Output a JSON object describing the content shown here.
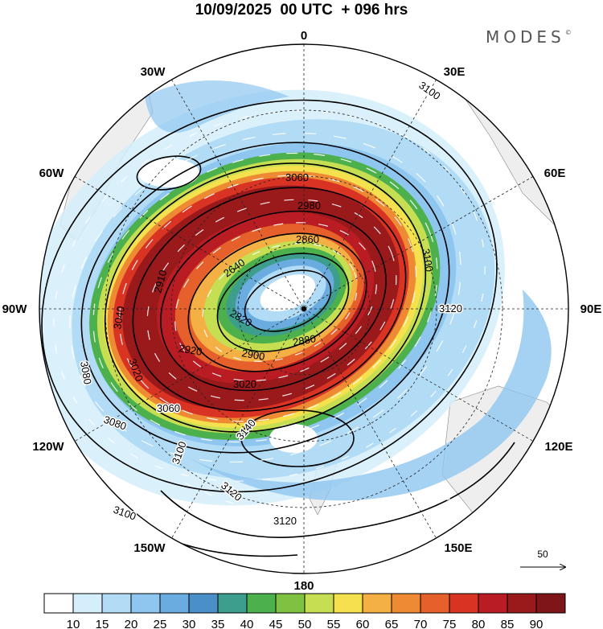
{
  "title": "10/09/2025  00 UTC  + 096 hrs",
  "brand": {
    "name": "MODES",
    "mark": "©"
  },
  "longitude_labels": [
    "0",
    "30E",
    "60E",
    "90E",
    "120E",
    "150E",
    "180",
    "150W",
    "120W",
    "90W",
    "60W",
    "30W"
  ],
  "contour_labels": [
    "3100",
    "3060",
    "2980",
    "2860",
    "2640",
    "2820",
    "2910",
    "3040",
    "3020",
    "3080",
    "3060",
    "3080",
    "2920",
    "2900",
    "2880",
    "3020",
    "3120",
    "3100",
    "3140",
    "3100",
    "3120",
    "3120",
    "3100"
  ],
  "wind_reference": {
    "value": "50"
  },
  "colorbar": {
    "ticks": [
      "10",
      "15",
      "20",
      "25",
      "30",
      "35",
      "40",
      "45",
      "50",
      "55",
      "60",
      "65",
      "70",
      "75",
      "80",
      "85",
      "90"
    ],
    "colors": [
      "#ffffff",
      "#d4eefc",
      "#b2dcf6",
      "#8ec6ef",
      "#6aacdf",
      "#4b8fc9",
      "#3d9e8e",
      "#4cb04c",
      "#7fc241",
      "#c6de52",
      "#f5e04d",
      "#f4b044",
      "#ee8a34",
      "#e5602a",
      "#d93324",
      "#b91c22",
      "#9a1a1c",
      "#7e1518"
    ]
  },
  "colors": {
    "land": "#eeeeee",
    "background": "#ffffff"
  }
}
